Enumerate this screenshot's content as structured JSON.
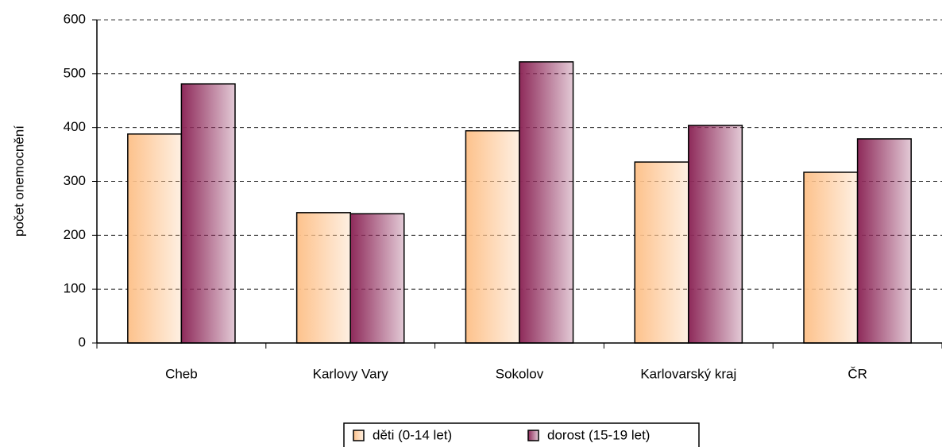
{
  "chart_data": {
    "type": "bar",
    "y_label": "počet onemocnění",
    "categories": [
      "Cheb",
      "Karlovy Vary",
      "Sokolov",
      "Karlovarský kraj",
      "ČR"
    ],
    "series": [
      {
        "name": "děti (0-14 let)",
        "color": "#fdc28c",
        "values": [
          388,
          242,
          394,
          336,
          317
        ]
      },
      {
        "name": "dorost (15-19 let)",
        "color": "#8e2a5a",
        "values": [
          481,
          240,
          522,
          404,
          379
        ]
      }
    ],
    "ylim": [
      0,
      600
    ],
    "yticks": [
      0,
      100,
      200,
      300,
      400,
      500,
      600
    ],
    "grid": true,
    "legend": "bottom"
  }
}
